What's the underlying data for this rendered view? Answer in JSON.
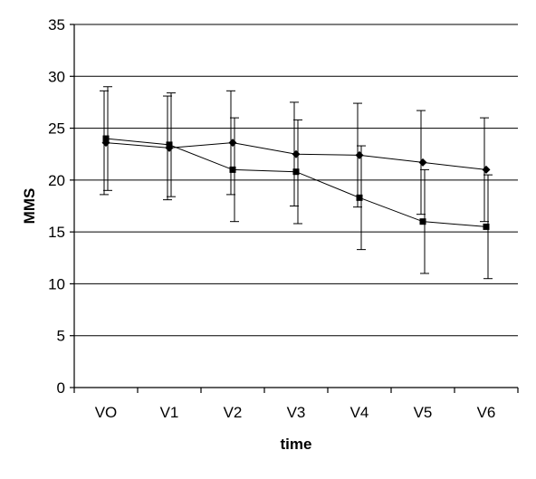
{
  "chart_data": {
    "type": "line",
    "title": "",
    "xlabel": "time",
    "ylabel": "MMS",
    "categories": [
      "VO",
      "V1",
      "V2",
      "V3",
      "V4",
      "V5",
      "V6"
    ],
    "ylim": [
      0,
      35
    ],
    "yticks": [
      0,
      5,
      10,
      15,
      20,
      25,
      30,
      35
    ],
    "grid": true,
    "legend": "none",
    "series": [
      {
        "marker": "diamond",
        "values": [
          23.6,
          23.1,
          23.6,
          22.5,
          22.4,
          21.7,
          21.0
        ],
        "error": [
          5.0,
          5.0,
          5.0,
          5.0,
          5.0,
          5.0,
          5.0
        ]
      },
      {
        "marker": "square",
        "values": [
          24.0,
          23.4,
          21.0,
          20.8,
          18.3,
          16.0,
          15.5
        ],
        "error": [
          5.0,
          5.0,
          5.0,
          5.0,
          5.0,
          5.0,
          5.0
        ]
      }
    ]
  }
}
